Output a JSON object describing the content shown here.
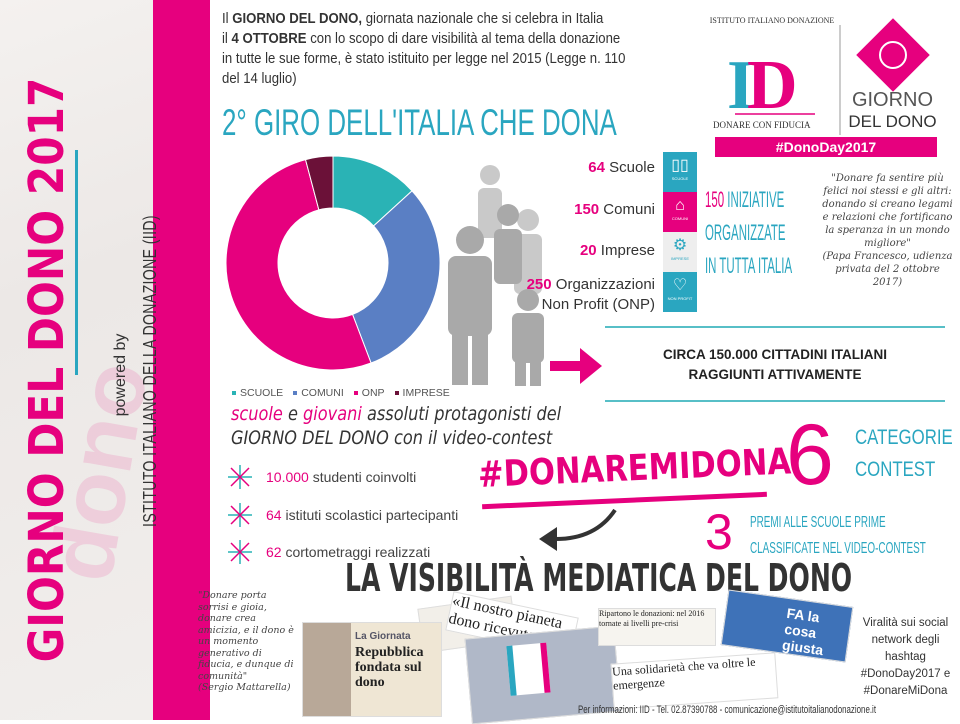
{
  "sidebar": {
    "title": "GIORNO DEL DONO 2017",
    "powered_by": "powered by",
    "org": "ISTITUTO ITALIANO DELLA DONAZIONE (IID)"
  },
  "intro": {
    "p1_pre": "Il ",
    "p1_bold": "GIORNO DEL DONO,",
    "p1_post": " giornata nazionale che si celebra in Italia",
    "p2_pre": "il ",
    "p2_bold": "4 OTTOBRE",
    "p2_post": " con lo scopo di dare visibilità al tema della donazione",
    "p3": "in tutte le sue forme, è stato istituito per legge nel 2015 (Legge n. 110",
    "p4": "del 14 luglio)"
  },
  "logo": {
    "arc_text": "ISTITUTO ITALIANO DONAZIONE",
    "monogram": "ID",
    "tagline": "DONARE CON FIDUCIA",
    "giorno": "GIORNO",
    "deldono": "DEL DONO",
    "hashtag": "#DonoDay2017"
  },
  "giro_title": "2° GIRO DELL'ITALIA CHE DONA",
  "chart_data": {
    "type": "pie",
    "donut": true,
    "categories": [
      "SCUOLE",
      "COMUNI",
      "ONP",
      "IMPRESE"
    ],
    "values": [
      64,
      150,
      250,
      20
    ],
    "colors": [
      "#2ab3b5",
      "#5a7fc4",
      "#e6007e",
      "#6b1138"
    ],
    "legend": "bottom"
  },
  "stats": [
    {
      "num": "64",
      "label": " Scuole"
    },
    {
      "num": "150",
      "label": " Comuni"
    },
    {
      "num": "20",
      "label": " Imprese"
    },
    {
      "num": "250",
      "label": " Organizzazioni",
      "label2": "Non Profit (ONP)"
    }
  ],
  "categories": [
    {
      "label": "SCUOLE",
      "icon": "book-icon",
      "color": "#2aa6c0"
    },
    {
      "label": "COMUNI",
      "icon": "building-icon",
      "color": "#e6007e"
    },
    {
      "label": "IMPRESE",
      "icon": "gears-icon",
      "color": "#eeeeee"
    },
    {
      "label": "NON PROFIT",
      "icon": "heart-icon",
      "color": "#2aa6c0"
    }
  ],
  "iniziative": {
    "num": "150",
    "l1": " INIZIATIVE",
    "l2": "ORGANIZZATE",
    "l3": "IN TUTTA ITALIA"
  },
  "papa_quote": {
    "text": "\"Donare fa sentire più felici noi stessi e gli altri: donando si creano legami e relazioni che fortificano la speranza in un mondo migliore\"",
    "source": "(Papa Francesco, udienza privata del 2 ottobre 2017)"
  },
  "circa": {
    "l1": "CIRCA 150.000 CITTADINI ITALIANI",
    "l2": "RAGGIUNTI ATTIVAMENTE"
  },
  "protag": {
    "w1": "scuole",
    "w2": " e ",
    "w3": "giovani",
    "w4": " assoluti protagonisti del",
    "l2": "GIORNO DEL DONO con il video-contest"
  },
  "bullets": [
    {
      "num": "10.000",
      "text": " studenti coinvolti"
    },
    {
      "num": "64",
      "text": " istituti scolastici partecipanti"
    },
    {
      "num": "62",
      "text": " cortometraggi realizzati"
    }
  ],
  "hashtag_contest": "#DONAREMIDONA",
  "six": {
    "num": "6",
    "l1": "CATEGORIE",
    "l2": "CONTEST"
  },
  "three": {
    "num": "3",
    "l1": "PREMI ALLE SCUOLE PRIME",
    "l2": "CLASSIFICATE NEL VIDEO-CONTEST"
  },
  "visibility_title": "LA VISIBILITÀ MEDIATICA DEL DONO",
  "mattarella": {
    "text": "\"Donare porta sorrisi e gioia, donare crea amicizia, e il dono è un momento generativo di fiducia, e dunque di comunità\"",
    "source": "(Sergio Mattarella)"
  },
  "clips": {
    "c1_head": "La Giornata",
    "c1_title": "Repubblica fondata sul dono",
    "c2": "«Il nostro pianeta dono ricevuto da con...",
    "c3": "Ripartono le donazioni: nel 2016 tornate ai livelli pre-crisi",
    "c4": "Una solidarietà che va oltre le emergenze",
    "c5": "FA la cosa giusta"
  },
  "viral": {
    "l1": "Viralità sui social network degli hashtag",
    "h1": "#DonoDay2017 e",
    "h2": "#DonareMiDona"
  },
  "footer": "Per informazioni: IID - Tel. 02.87390788 - comunicazione@istitutoitalianodonazione.it"
}
